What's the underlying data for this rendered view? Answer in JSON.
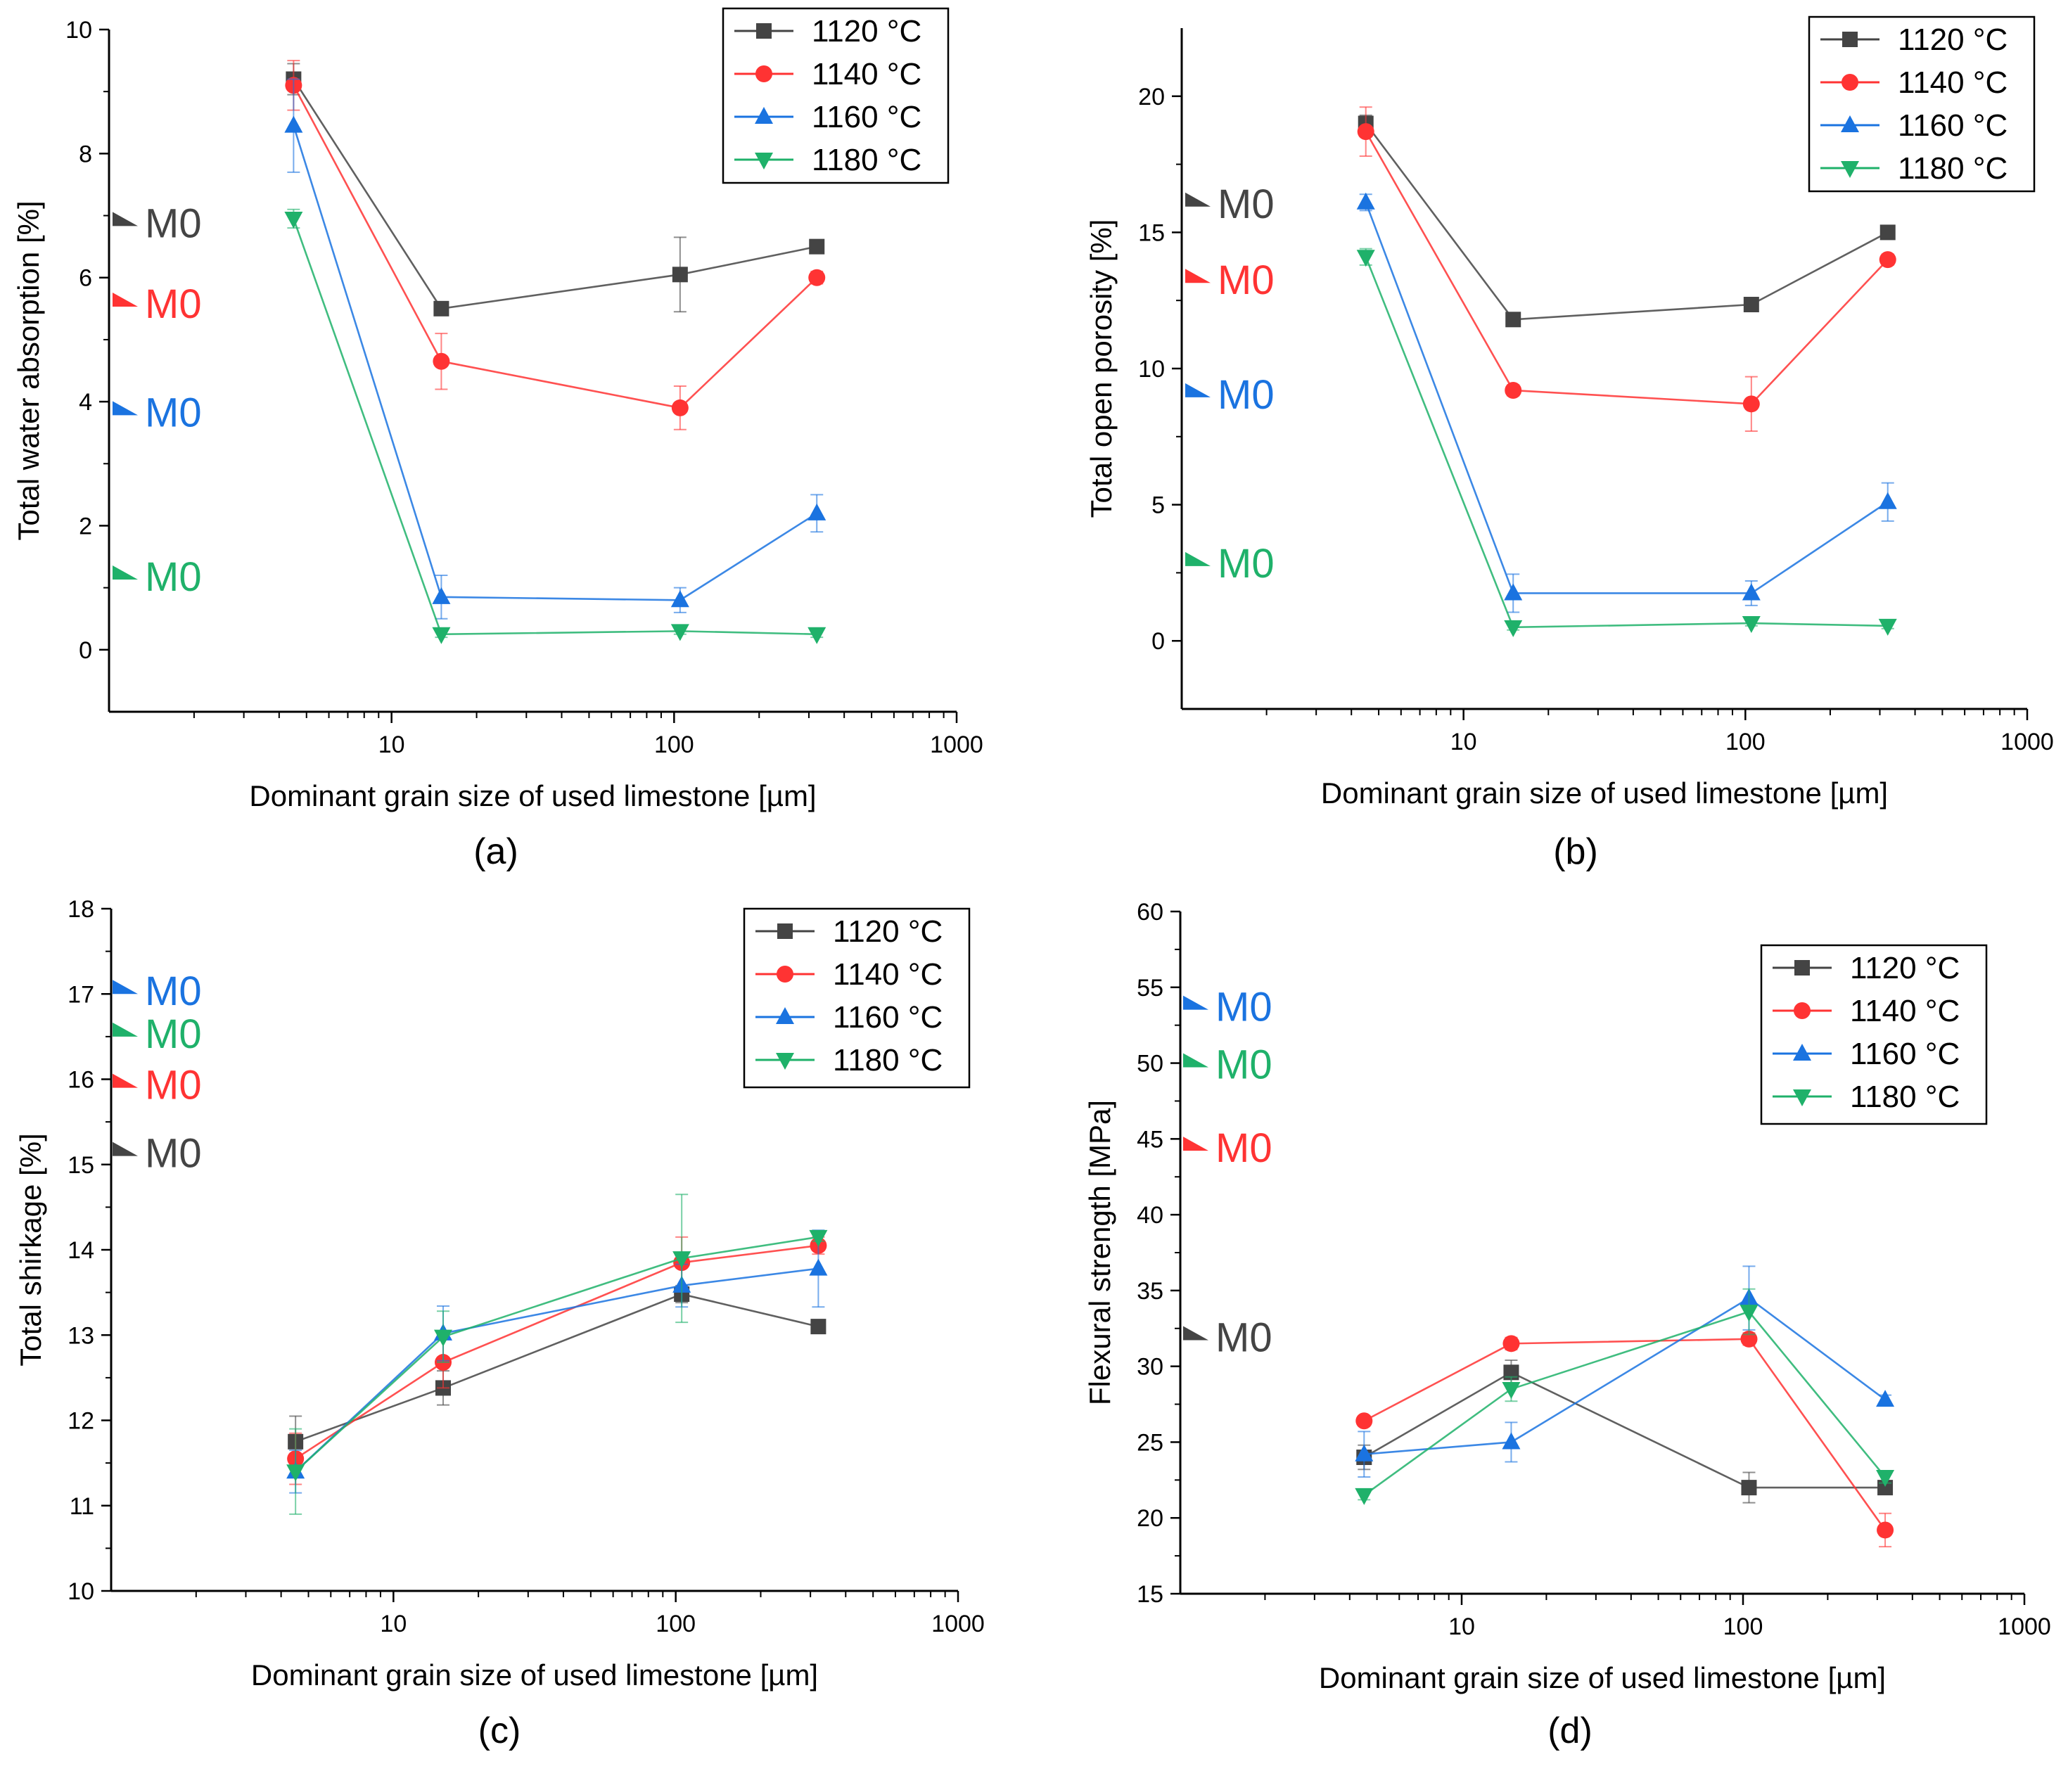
{
  "colors": {
    "1120 °C": "#444444",
    "1140 °C": "#ff3333",
    "1160 °C": "#1a73e0",
    "1180 °C": "#1fb16a"
  },
  "legend_labels": [
    "1120 °C",
    "1140 °C",
    "1160 °C",
    "1180 °C"
  ],
  "chart_data": [
    {
      "type": "line",
      "caption": "(a)",
      "xlabel": "Dominant grain size of used limestone [µm]",
      "ylabel": "Total water absorption [%]",
      "xscale": "log",
      "xlim": [
        1,
        1000
      ],
      "ylim": [
        -1,
        10
      ],
      "xticks": [
        "10",
        "100",
        "1000"
      ],
      "yticks": [
        "0",
        "2",
        "4",
        "6",
        "8",
        "10"
      ],
      "legend_position": "top-right",
      "x": [
        4.5,
        15,
        105,
        320
      ],
      "series": [
        {
          "name": "1120 °C",
          "values": [
            9.2,
            5.5,
            6.05,
            6.5
          ],
          "errors": [
            0.25,
            0.0,
            0.6,
            0.0
          ]
        },
        {
          "name": "1140 °C",
          "values": [
            9.1,
            4.65,
            3.9,
            6.0
          ],
          "errors": [
            0.4,
            0.45,
            0.35,
            0.1
          ]
        },
        {
          "name": "1160 °C",
          "values": [
            8.45,
            0.85,
            0.8,
            2.2
          ],
          "errors": [
            0.75,
            0.35,
            0.2,
            0.3
          ]
        },
        {
          "name": "1180 °C",
          "values": [
            6.95,
            0.25,
            0.3,
            0.25
          ],
          "errors": [
            0.15,
            0.05,
            0.05,
            0.05
          ]
        }
      ],
      "m0_label": "M0",
      "m0": [
        {
          "name": "1120 °C",
          "value": 6.9
        },
        {
          "name": "1140 °C",
          "value": 5.6
        },
        {
          "name": "1160 °C",
          "value": 3.85
        },
        {
          "name": "1180 °C",
          "value": 1.2
        }
      ]
    },
    {
      "type": "line",
      "caption": "(b)",
      "xlabel": "Dominant grain size of used limestone [µm]",
      "ylabel": "Total open porosity [%]",
      "xscale": "log",
      "xlim": [
        1,
        1000
      ],
      "ylim": [
        -2.5,
        22.5
      ],
      "xticks": [
        "10",
        "100",
        "1000"
      ],
      "yticks": [
        "0",
        "5",
        "10",
        "15",
        "20"
      ],
      "legend_position": "top-right",
      "x": [
        4.5,
        15,
        105,
        320
      ],
      "series": [
        {
          "name": "1120 °C",
          "values": [
            19.0,
            11.8,
            12.35,
            15.0
          ],
          "errors": [
            0.3,
            0.0,
            0.0,
            0.0
          ]
        },
        {
          "name": "1140 °C",
          "values": [
            18.7,
            9.2,
            8.7,
            14.0
          ],
          "errors": [
            0.9,
            0.2,
            1.0,
            0.2
          ]
        },
        {
          "name": "1160 °C",
          "values": [
            16.1,
            1.75,
            1.75,
            5.1
          ],
          "errors": [
            0.3,
            0.7,
            0.45,
            0.7
          ]
        },
        {
          "name": "1180 °C",
          "values": [
            14.1,
            0.5,
            0.65,
            0.55
          ],
          "errors": [
            0.3,
            0.1,
            0.1,
            0.1
          ]
        }
      ],
      "m0_label": "M0",
      "m0": [
        {
          "name": "1120 °C",
          "value": 16.1
        },
        {
          "name": "1140 °C",
          "value": 13.3
        },
        {
          "name": "1160 °C",
          "value": 9.1
        },
        {
          "name": "1180 °C",
          "value": 2.9
        }
      ]
    },
    {
      "type": "line",
      "caption": "(c)",
      "xlabel": "Dominant grain size of used limestone [µm]",
      "ylabel": "Total shirkage [%]",
      "xscale": "log",
      "xlim": [
        1,
        1000
      ],
      "ylim": [
        10,
        18
      ],
      "xticks": [
        "10",
        "100",
        "1000"
      ],
      "yticks": [
        "10",
        "11",
        "12",
        "13",
        "14",
        "15",
        "16",
        "17",
        "18"
      ],
      "legend_position": "top-right",
      "x": [
        4.5,
        15,
        105,
        320
      ],
      "series": [
        {
          "name": "1120 °C",
          "values": [
            11.75,
            12.38,
            13.48,
            13.1
          ],
          "errors": [
            0.3,
            0.2,
            0.1,
            0.05
          ]
        },
        {
          "name": "1140 °C",
          "values": [
            11.55,
            12.68,
            13.85,
            14.05
          ],
          "errors": [
            0.3,
            0.3,
            0.3,
            0.1
          ]
        },
        {
          "name": "1160 °C",
          "values": [
            11.4,
            13.02,
            13.58,
            13.78
          ],
          "errors": [
            0.25,
            0.32,
            0.25,
            0.45
          ]
        },
        {
          "name": "1180 °C",
          "values": [
            11.4,
            12.98,
            13.9,
            14.15
          ],
          "errors": [
            0.5,
            0.3,
            0.75,
            0.05
          ]
        }
      ],
      "m0_label": "M0",
      "m0": [
        {
          "name": "1120 °C",
          "value": 15.15
        },
        {
          "name": "1140 °C",
          "value": 15.95
        },
        {
          "name": "1160 °C",
          "value": 17.05
        },
        {
          "name": "1180 °C",
          "value": 16.55
        }
      ]
    },
    {
      "type": "line",
      "caption": "(d)",
      "xlabel": "Dominant grain size of used limestone [µm]",
      "ylabel": "Flexural strength [MPa]",
      "xscale": "log",
      "xlim": [
        1,
        1000
      ],
      "ylim": [
        15,
        60
      ],
      "xticks": [
        "10",
        "100",
        "1000"
      ],
      "yticks": [
        "15",
        "20",
        "25",
        "30",
        "35",
        "40",
        "45",
        "50",
        "55",
        "60"
      ],
      "legend_position": "top-right",
      "x": [
        4.5,
        15,
        105,
        320
      ],
      "series": [
        {
          "name": "1120 °C",
          "values": [
            24.0,
            29.6,
            22.0,
            22.0
          ],
          "errors": [
            0.8,
            0.8,
            1.0,
            0.3
          ]
        },
        {
          "name": "1140 °C",
          "values": [
            26.4,
            31.5,
            31.8,
            19.2
          ],
          "errors": [
            0.3,
            0.4,
            0.4,
            1.1
          ]
        },
        {
          "name": "1160 °C",
          "values": [
            24.2,
            25.0,
            34.5,
            27.8
          ],
          "errors": [
            1.5,
            1.3,
            2.1,
            0.3
          ]
        },
        {
          "name": "1180 °C",
          "values": [
            21.5,
            28.5,
            33.6,
            22.7
          ],
          "errors": [
            0.3,
            0.8,
            1.5,
            0.4
          ]
        }
      ],
      "m0_label": "M0",
      "m0": [
        {
          "name": "1120 °C",
          "value": 32.0
        },
        {
          "name": "1140 °C",
          "value": 44.5
        },
        {
          "name": "1160 °C",
          "value": 53.8
        },
        {
          "name": "1180 °C",
          "value": 50.0
        }
      ]
    }
  ]
}
